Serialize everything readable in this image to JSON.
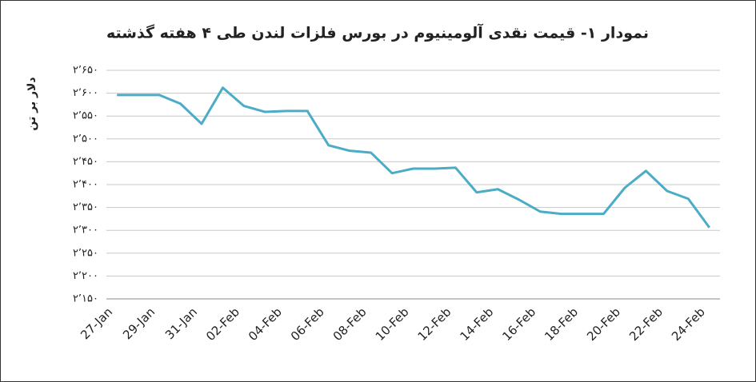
{
  "chart_data": {
    "type": "line",
    "title": "نمودار ۱- قیمت نقدی آلومینیوم در بورس فلزات لندن طی ۴ هفته گذشته",
    "y_label": "دلار بر تن",
    "categories": [
      "27-Jan",
      null,
      "29-Jan",
      null,
      "31-Jan",
      null,
      "02-Feb",
      null,
      "04-Feb",
      null,
      "06-Feb",
      null,
      "08-Feb",
      null,
      "10-Feb",
      null,
      "12-Feb",
      null,
      "14-Feb",
      null,
      "16-Feb",
      null,
      "18-Feb",
      null,
      "20-Feb",
      null,
      "22-Feb",
      null,
      "24-Feb"
    ],
    "series": [
      {
        "color": "#4bacc6",
        "values": [
          2596,
          2596,
          2596,
          2577,
          2533,
          2612,
          2572,
          2559,
          2561,
          2561,
          2486,
          2474,
          2470,
          2425,
          2435,
          2435,
          2437,
          2383,
          2390,
          2367,
          2341,
          2336,
          2336,
          2336,
          2393,
          2430,
          2386,
          2369,
          2306
        ]
      }
    ],
    "ylim": [
      2150,
      2650
    ],
    "yticks": [
      {
        "value": 2150,
        "label": "۲٬۱۵۰"
      },
      {
        "value": 2200,
        "label": "۲٬۲۰۰"
      },
      {
        "value": 2250,
        "label": "۲٬۲۵۰"
      },
      {
        "value": 2300,
        "label": "۲٬۳۰۰"
      },
      {
        "value": 2350,
        "label": "۲٬۳۵۰"
      },
      {
        "value": 2400,
        "label": "۲٬۴۰۰"
      },
      {
        "value": 2450,
        "label": "۲٬۴۵۰"
      },
      {
        "value": 2500,
        "label": "۲٬۵۰۰"
      },
      {
        "value": 2550,
        "label": "۲٬۵۵۰"
      },
      {
        "value": 2600,
        "label": "۲٬۶۰۰"
      },
      {
        "value": 2650,
        "label": "۲٬۶۵۰"
      }
    ],
    "grid": true
  }
}
